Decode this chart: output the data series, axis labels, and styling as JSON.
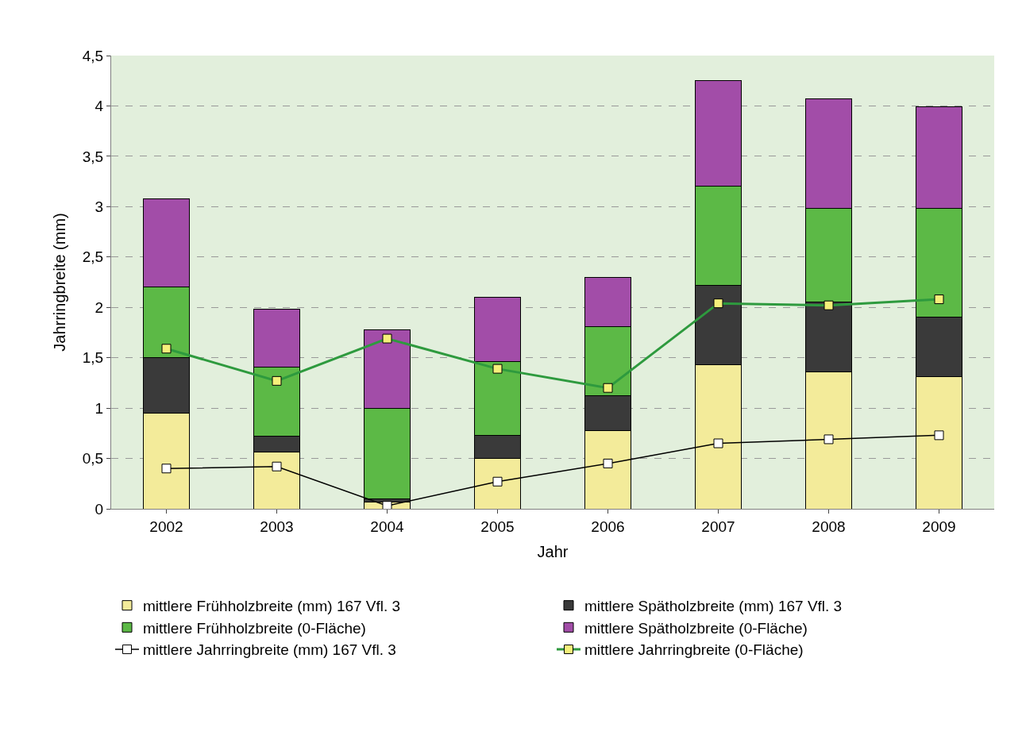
{
  "chart_data": {
    "type": "bar",
    "stacked": true,
    "xlabel": "Jahr",
    "ylabel": "Jahrringbreite (mm)",
    "categories": [
      "2002",
      "2003",
      "2004",
      "2005",
      "2006",
      "2007",
      "2008",
      "2009"
    ],
    "series": [
      {
        "name": "mittlere Frühholzbreite (mm) 167 Vfl. 3",
        "color": "#f3eb9a",
        "values": [
          0.95,
          0.56,
          0.07,
          0.5,
          0.78,
          1.43,
          1.36,
          1.31
        ]
      },
      {
        "name": "mittlere Spätholzbreite (mm) 167 Vfl. 3",
        "color": "#3a3a3a",
        "values": [
          0.55,
          0.16,
          0.03,
          0.23,
          0.34,
          0.79,
          0.69,
          0.59
        ]
      },
      {
        "name": "mittlere Frühholzbreite (0-Fläche)",
        "color": "#5cb946",
        "values": [
          0.7,
          0.69,
          0.9,
          0.73,
          0.69,
          0.98,
          0.93,
          1.08
        ]
      },
      {
        "name": "mittlere Spätholzbreite (0-Fläche)",
        "color": "#a24da8",
        "values": [
          0.88,
          0.57,
          0.78,
          0.64,
          0.49,
          1.05,
          1.09,
          1.01
        ]
      },
      {
        "name": "mittlere Jahrringbreite (mm) 167 Vfl. 3",
        "type": "line",
        "color": "#000000",
        "values": [
          0.4,
          0.42,
          0.03,
          0.27,
          0.45,
          0.65,
          0.69,
          0.73
        ]
      },
      {
        "name": "mittlere Jahrringbreite (0-Fläche)",
        "type": "line",
        "color": "#2e9a3e",
        "values": [
          1.59,
          1.27,
          1.69,
          1.39,
          1.2,
          2.04,
          2.02,
          2.08
        ]
      }
    ],
    "ylim": [
      0,
      4.5
    ],
    "yticks": [
      {
        "value": 0,
        "label": "0"
      },
      {
        "value": 0.5,
        "label": "0,5"
      },
      {
        "value": 1,
        "label": "1"
      },
      {
        "value": 1.5,
        "label": "1,5"
      },
      {
        "value": 2,
        "label": "2"
      },
      {
        "value": 2.5,
        "label": "2,5"
      },
      {
        "value": 3,
        "label": "3"
      },
      {
        "value": 3.5,
        "label": "3,5"
      },
      {
        "value": 4,
        "label": "4"
      },
      {
        "value": 4.5,
        "label": "4,5"
      }
    ],
    "grid": "y",
    "legend": "bottom",
    "marker": "square"
  }
}
